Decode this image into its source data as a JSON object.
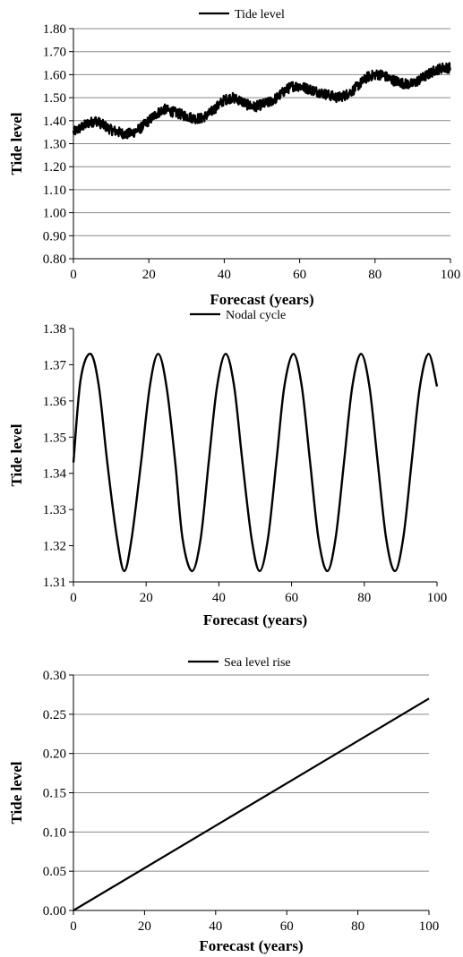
{
  "chart_data": [
    {
      "type": "line",
      "legend": "Tide level",
      "legend_position": "top",
      "xlabel": "Forecast (years)",
      "ylabel": "Tide level",
      "xlim": [
        0,
        100
      ],
      "ylim": [
        0.8,
        1.8
      ],
      "xticks": [
        "0",
        "20",
        "40",
        "60",
        "80",
        "100"
      ],
      "yticks": [
        "0.80",
        "0.90",
        "1.00",
        "1.10",
        "1.20",
        "1.30",
        "1.40",
        "1.50",
        "1.60",
        "1.70",
        "1.80"
      ],
      "grid": true,
      "series": [
        {
          "name": "Tide level",
          "x": [
            0,
            2,
            4,
            6,
            8,
            10,
            12,
            14,
            16,
            18,
            20,
            22,
            24,
            26,
            28,
            30,
            32,
            34,
            36,
            38,
            40,
            42,
            44,
            46,
            48,
            50,
            52,
            54,
            56,
            58,
            60,
            62,
            64,
            66,
            68,
            70,
            72,
            74,
            76,
            78,
            80,
            82,
            84,
            86,
            88,
            90,
            92,
            94,
            96,
            98,
            100
          ],
          "y": [
            1.35,
            1.37,
            1.39,
            1.4,
            1.38,
            1.36,
            1.35,
            1.34,
            1.35,
            1.37,
            1.4,
            1.43,
            1.45,
            1.44,
            1.43,
            1.42,
            1.41,
            1.41,
            1.43,
            1.46,
            1.49,
            1.5,
            1.49,
            1.47,
            1.46,
            1.47,
            1.48,
            1.5,
            1.53,
            1.55,
            1.55,
            1.54,
            1.53,
            1.52,
            1.51,
            1.5,
            1.51,
            1.53,
            1.56,
            1.59,
            1.6,
            1.6,
            1.58,
            1.57,
            1.56,
            1.56,
            1.58,
            1.6,
            1.62,
            1.63,
            1.63
          ]
        }
      ]
    },
    {
      "type": "line",
      "legend": "Nodal cycle",
      "legend_position": "top",
      "xlabel": "Forecast (years)",
      "ylabel": "Tide level",
      "xlim": [
        0,
        100
      ],
      "ylim": [
        1.31,
        1.38
      ],
      "xticks": [
        "0",
        "20",
        "40",
        "60",
        "80",
        "100"
      ],
      "yticks": [
        "1.31",
        "1.32",
        "1.33",
        "1.34",
        "1.35",
        "1.36",
        "1.37",
        "1.38"
      ],
      "grid": false,
      "series": [
        {
          "name": "Nodal cycle",
          "x": [
            0,
            2,
            4.7,
            7,
            9.3,
            12,
            14,
            16,
            18.6,
            21,
            23.3,
            25.6,
            28,
            30,
            32.6,
            35,
            37.2,
            39.5,
            41.9,
            44.2,
            46.5,
            49,
            51.2,
            53.5,
            55.8,
            58,
            60.5,
            62.8,
            65.1,
            67.4,
            69.8,
            72.1,
            74.4,
            76.7,
            79.1,
            81.4,
            83.7,
            86,
            88.4,
            90.7,
            93,
            95.3,
            97.7,
            100
          ],
          "y": [
            1.343,
            1.366,
            1.373,
            1.364,
            1.343,
            1.322,
            1.313,
            1.322,
            1.343,
            1.364,
            1.373,
            1.364,
            1.343,
            1.322,
            1.313,
            1.322,
            1.343,
            1.364,
            1.373,
            1.364,
            1.343,
            1.322,
            1.313,
            1.322,
            1.343,
            1.364,
            1.373,
            1.364,
            1.343,
            1.322,
            1.313,
            1.322,
            1.343,
            1.364,
            1.373,
            1.364,
            1.343,
            1.322,
            1.313,
            1.322,
            1.343,
            1.364,
            1.373,
            1.364
          ]
        }
      ]
    },
    {
      "type": "line",
      "legend": "Sea level rise",
      "legend_position": "top",
      "xlabel": "Forecast (years)",
      "ylabel": "Tide level",
      "xlim": [
        0,
        100
      ],
      "ylim": [
        0.0,
        0.3
      ],
      "xticks": [
        "0",
        "20",
        "40",
        "60",
        "80",
        "100"
      ],
      "yticks": [
        "0.00",
        "0.05",
        "0.10",
        "0.15",
        "0.20",
        "0.25",
        "0.30"
      ],
      "grid": true,
      "series": [
        {
          "name": "Sea level rise",
          "x": [
            0,
            100
          ],
          "y": [
            0.0,
            0.27
          ]
        }
      ]
    }
  ]
}
